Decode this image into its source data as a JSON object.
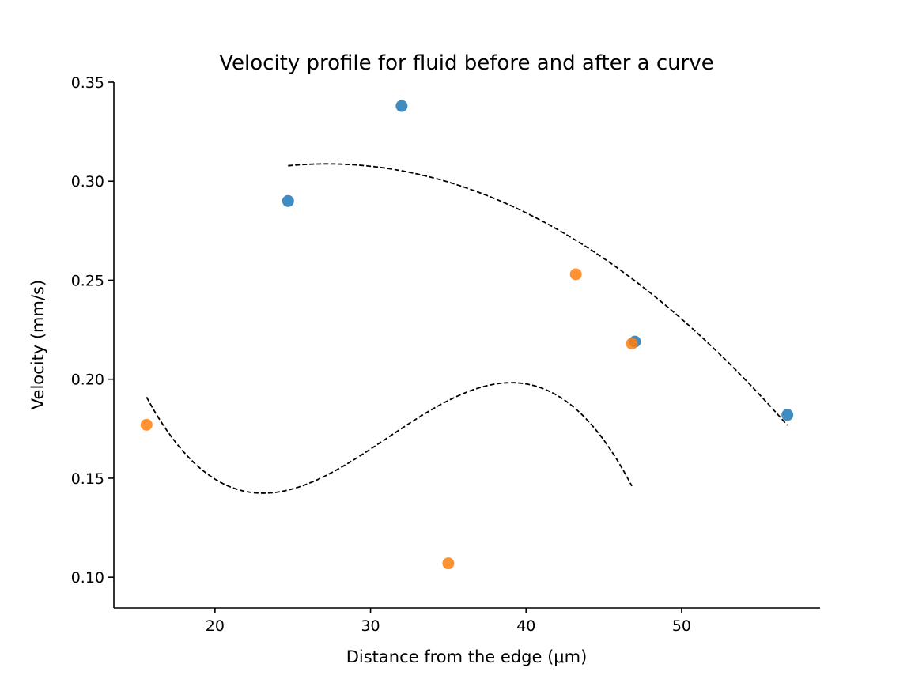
{
  "chart_data": {
    "type": "scatter",
    "title": "Velocity profile for fluid before and after a curve",
    "xlabel": "Distance from the edge (μm)",
    "ylabel": "Velocity (mm/s)",
    "xlim": [
      13.5,
      58.9
    ],
    "ylim": [
      0.0845,
      0.35
    ],
    "xticks": [
      20,
      30,
      40,
      50
    ],
    "yticks": [
      0.1,
      0.15,
      0.2,
      0.25,
      0.3,
      0.35
    ],
    "xtick_labels": [
      "20",
      "30",
      "40",
      "50"
    ],
    "ytick_labels": [
      "0.10",
      "0.15",
      "0.20",
      "0.25",
      "0.30",
      "0.35"
    ],
    "grid": false,
    "series": [
      {
        "color": "#1f77b4",
        "points": [
          {
            "x": 24.7,
            "y": 0.29
          },
          {
            "x": 32.0,
            "y": 0.338
          },
          {
            "x": 47.0,
            "y": 0.219
          },
          {
            "x": 56.8,
            "y": 0.182
          }
        ],
        "fit": {
          "type": "quadratic",
          "x_range": [
            24.7,
            56.8
          ],
          "coef": [
            0.1974,
            0.00819,
            -0.0001506
          ]
        }
      },
      {
        "color": "#ff7f0e",
        "points": [
          {
            "x": 15.6,
            "y": 0.177
          },
          {
            "x": 35.0,
            "y": 0.107
          },
          {
            "x": 43.2,
            "y": 0.253
          },
          {
            "x": 46.8,
            "y": 0.218
          }
        ],
        "fit": {
          "type": "cubic",
          "x_range": [
            15.6,
            46.8
          ],
          "coef": [
            0.8317,
            -0.07434,
            0.002561,
            -2.747e-05
          ]
        }
      }
    ]
  }
}
